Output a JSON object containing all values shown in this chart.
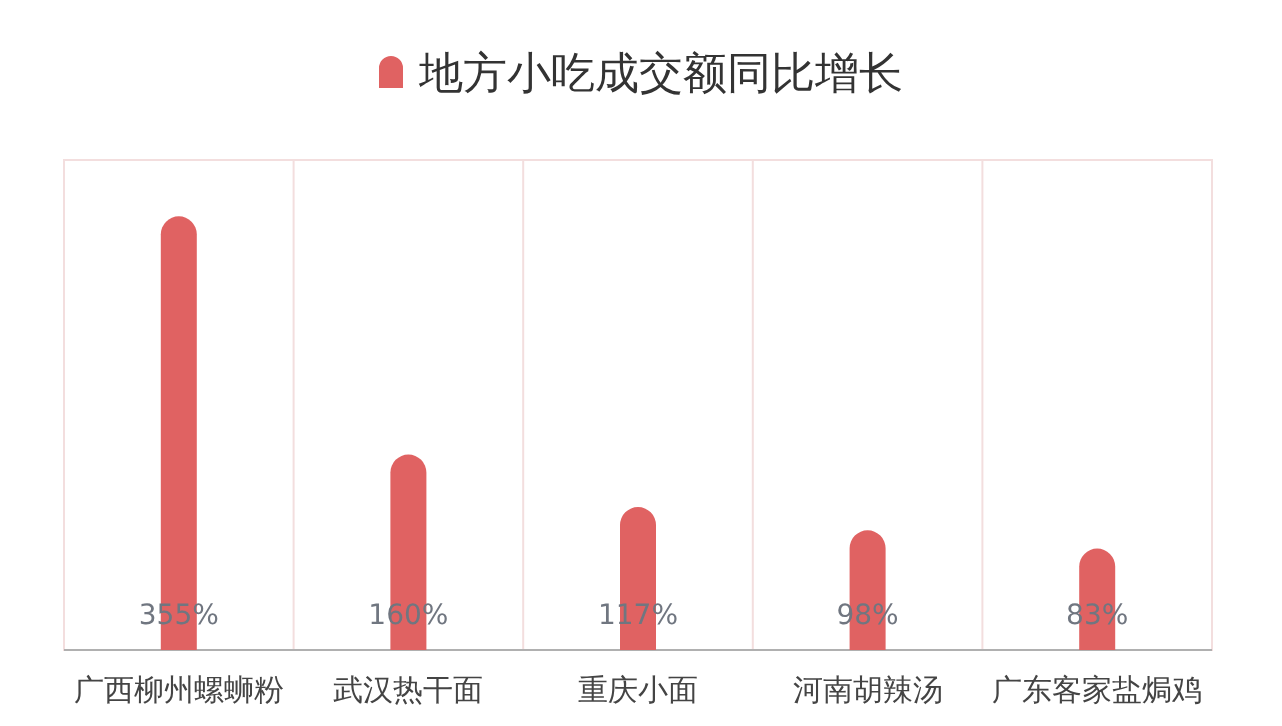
{
  "chart_data": {
    "type": "bar",
    "categories": [
      "广西柳州螺蛳粉",
      "武汉热干面",
      "重庆小面",
      "河南胡辣汤",
      "广东客家盐焗鸡"
    ],
    "series": [
      {
        "name": "地方小吃成交额同比增长",
        "color": "#e06262",
        "values": [
          355,
          160,
          117,
          98,
          83
        ],
        "value_labels": [
          "355%",
          "160%",
          "117%",
          "98%",
          "83%"
        ]
      }
    ],
    "relative": false,
    "legend": "top"
  }
}
